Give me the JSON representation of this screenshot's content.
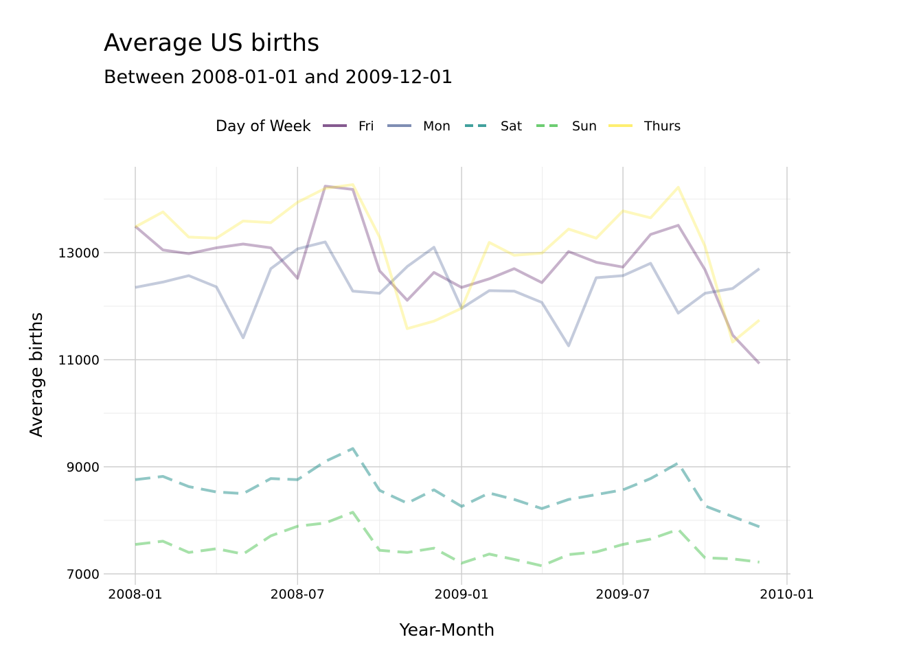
{
  "chart_data": {
    "type": "line",
    "title": "Average US births",
    "subtitle": "Between 2008-01-01 and 2009-12-01",
    "xlabel": "Year-Month",
    "ylabel": "Average births",
    "legend_title": "Day of Week",
    "legend_position": "top",
    "grid": true,
    "ylim": [
      6900,
      14300
    ],
    "y_ticks": [
      7000,
      9000,
      11000,
      13000
    ],
    "y_tick_labels": [
      "7000",
      "9000",
      "11000",
      "13000"
    ],
    "x_range": [
      "2007-12-01",
      "2010-01-01"
    ],
    "x_ticks": [
      "2008-01",
      "2008-07",
      "2009-01",
      "2009-07",
      "2010-01"
    ],
    "x": [
      "2008-01",
      "2008-02",
      "2008-03",
      "2008-04",
      "2008-05",
      "2008-06",
      "2008-07",
      "2008-08",
      "2008-09",
      "2008-10",
      "2008-11",
      "2008-12",
      "2009-01",
      "2009-02",
      "2009-03",
      "2009-04",
      "2009-05",
      "2009-06",
      "2009-07",
      "2009-08",
      "2009-09",
      "2009-10",
      "2009-11",
      "2009-12"
    ],
    "series": [
      {
        "name": "Fri",
        "color": "#440154",
        "opacity": 0.3,
        "dashed": false,
        "values": [
          13490,
          13050,
          12980,
          13090,
          13160,
          13090,
          12520,
          14240,
          14180,
          12660,
          12110,
          12630,
          12350,
          12510,
          12700,
          12440,
          13020,
          12820,
          12730,
          13340,
          13510,
          12680,
          11460,
          10930
        ]
      },
      {
        "name": "Mon",
        "color": "#3b528b",
        "opacity": 0.3,
        "dashed": false,
        "values": [
          12350,
          12450,
          12570,
          12360,
          11410,
          12700,
          13070,
          13200,
          12280,
          12240,
          12740,
          13100,
          11960,
          12290,
          12280,
          12070,
          11260,
          12530,
          12570,
          12800,
          11870,
          12240,
          12330,
          12700
        ]
      },
      {
        "name": "Sat",
        "color": "#21908c",
        "opacity": 0.5,
        "dashed": true,
        "values": [
          8760,
          8820,
          8630,
          8530,
          8500,
          8780,
          8760,
          9100,
          9340,
          8560,
          8320,
          8570,
          8260,
          8510,
          8390,
          8220,
          8390,
          8480,
          8570,
          8780,
          9070,
          8270,
          8070,
          7880
        ]
      },
      {
        "name": "Sun",
        "color": "#5dc863",
        "opacity": 0.55,
        "dashed": true,
        "values": [
          7550,
          7610,
          7400,
          7470,
          7370,
          7710,
          7890,
          7950,
          8150,
          7440,
          7400,
          7480,
          7200,
          7370,
          7270,
          7150,
          7360,
          7410,
          7550,
          7650,
          7830,
          7300,
          7280,
          7220
        ]
      },
      {
        "name": "Thurs",
        "color": "#fde725",
        "opacity": 0.3,
        "dashed": false,
        "values": [
          13480,
          13760,
          13290,
          13270,
          13590,
          13560,
          13940,
          14200,
          14270,
          13290,
          11580,
          11720,
          11960,
          13190,
          12950,
          12990,
          13440,
          13270,
          13780,
          13650,
          14220,
          13120,
          11330,
          11740
        ]
      }
    ]
  }
}
